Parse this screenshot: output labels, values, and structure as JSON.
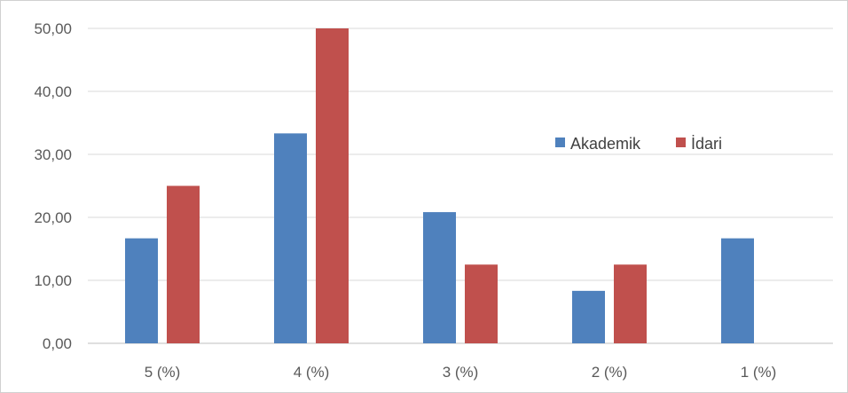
{
  "chart_data": {
    "type": "bar",
    "title": "",
    "xlabel": "",
    "ylabel": "",
    "categories": [
      "5 (%)",
      "4 (%)",
      "3 (%)",
      "2 (%)",
      "1 (%)"
    ],
    "series": [
      {
        "name": "Akademik",
        "color": "#4f81bd",
        "values": [
          16.67,
          33.33,
          20.83,
          8.33,
          16.67
        ]
      },
      {
        "name": "İdari",
        "color": "#c0504d",
        "values": [
          25.0,
          50.0,
          12.5,
          12.5,
          0.0
        ]
      }
    ],
    "ylim": [
      0,
      50
    ],
    "yticks": [
      "0,00",
      "10,00",
      "20,00",
      "30,00",
      "40,00",
      "50,00"
    ],
    "grid": true,
    "legend_position": "right-center"
  }
}
